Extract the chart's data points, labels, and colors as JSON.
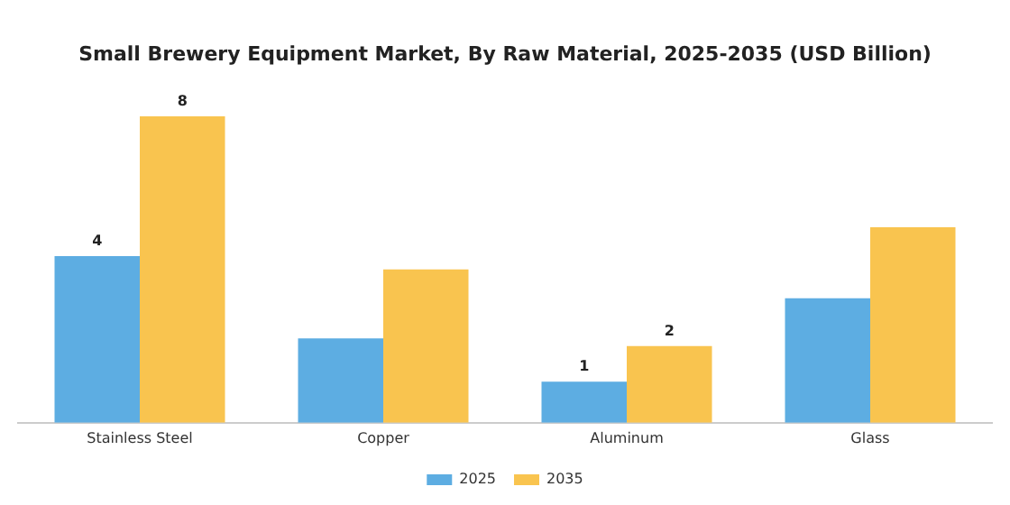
{
  "chart_data": {
    "type": "bar",
    "title": "Small Brewery Equipment Market, By Raw Material, 2025-2035 (USD Billion)",
    "categories": [
      "Stainless Steel",
      "Copper",
      "Aluminum",
      "Glass"
    ],
    "series": [
      {
        "name": "2025",
        "color": "#5dade2",
        "values": [
          4.35,
          2.2,
          1.07,
          3.25
        ],
        "value_labels": [
          "4",
          null,
          "1",
          null
        ]
      },
      {
        "name": "2035",
        "color": "#f9c44f",
        "values": [
          8.0,
          4.0,
          2.0,
          5.1
        ],
        "value_labels": [
          "8",
          null,
          "2",
          null
        ]
      }
    ],
    "legend": "bottom",
    "grid": false,
    "tick_labels": "x"
  }
}
